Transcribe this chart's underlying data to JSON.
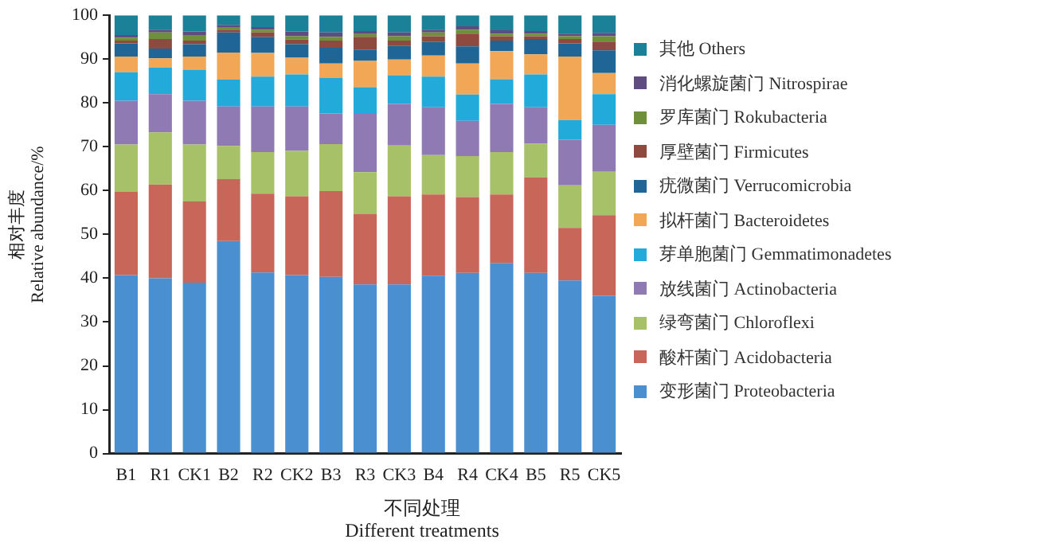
{
  "chart_data": {
    "type": "bar",
    "stacked": true,
    "ylabel": "相对丰度\nRelative abundance/%",
    "xlabel": "不同处理\nDifferent treatments",
    "legend": "right",
    "grid": false,
    "categories": [
      "B1",
      "R1",
      "CK1",
      "B2",
      "R2",
      "CK2",
      "B3",
      "R3",
      "CK3",
      "B4",
      "R4",
      "CK4",
      "B5",
      "R5",
      "CK5"
    ],
    "ylim": [
      0,
      100
    ],
    "yticks": [
      0,
      10,
      20,
      30,
      40,
      50,
      60,
      70,
      80,
      90,
      100
    ],
    "series": [
      {
        "name": "变形菌门 Proteobacteria",
        "color": "#4a8fd0",
        "values": [
          40.7,
          40.0,
          39.0,
          48.5,
          41.3,
          40.7,
          40.3,
          38.6,
          38.6,
          40.6,
          41.2,
          43.5,
          41.2,
          39.5,
          36.0
        ]
      },
      {
        "name": "酸杆菌门 Acidobacteria",
        "color": "#c9665a",
        "values": [
          19.0,
          21.4,
          18.5,
          14.1,
          18.0,
          18.0,
          19.6,
          16.1,
          20.1,
          18.5,
          17.3,
          15.6,
          21.8,
          12.0,
          18.4
        ]
      },
      {
        "name": "绿弯菌门 Chloroflexi",
        "color": "#a6c168",
        "values": [
          10.8,
          11.9,
          13.0,
          7.6,
          9.5,
          10.4,
          10.7,
          9.5,
          11.6,
          9.0,
          9.4,
          9.7,
          7.7,
          9.7,
          9.9
        ]
      },
      {
        "name": "放线菌门 Actinobacteria",
        "color": "#8f7ab3",
        "values": [
          10.0,
          8.7,
          10.0,
          9.0,
          10.4,
          10.1,
          7.0,
          13.3,
          9.5,
          10.9,
          8.0,
          11.0,
          8.3,
          10.4,
          10.7
        ]
      },
      {
        "name": "芽单胞菌门 Gemmatimonadetes",
        "color": "#22aadb",
        "values": [
          6.5,
          6.1,
          7.1,
          6.1,
          6.8,
          7.3,
          8.1,
          6.1,
          6.5,
          7.0,
          6.0,
          5.6,
          7.5,
          4.5,
          7.0
        ]
      },
      {
        "name": "拟杆菌门 Bacteroidetes",
        "color": "#f2a757",
        "values": [
          3.6,
          2.1,
          3.0,
          6.2,
          5.4,
          3.8,
          3.3,
          6.0,
          3.6,
          4.8,
          7.1,
          6.4,
          4.6,
          14.5,
          4.8
        ]
      },
      {
        "name": "疣微菌门 Verrucomicrobia",
        "color": "#1f6595",
        "values": [
          3.0,
          2.2,
          2.8,
          4.6,
          3.7,
          3.1,
          3.6,
          2.6,
          3.1,
          3.1,
          3.9,
          2.4,
          3.5,
          3.0,
          5.2
        ]
      },
      {
        "name": "厚壁菌门 Firmicutes",
        "color": "#8f4a40",
        "values": [
          0.6,
          2.2,
          0.8,
          0.6,
          1.0,
          1.1,
          1.6,
          2.9,
          1.2,
          1.3,
          2.9,
          1.0,
          0.6,
          1.0,
          2.0
        ]
      },
      {
        "name": "罗库菌门 Rokubacteria",
        "color": "#6f8f3a",
        "values": [
          0.7,
          1.5,
          1.3,
          0.6,
          0.6,
          0.7,
          0.9,
          0.6,
          1.0,
          0.9,
          0.9,
          0.6,
          0.6,
          0.6,
          1.2
        ]
      },
      {
        "name": "消化螺旋菌门 Nitrospirae",
        "color": "#5f4d82",
        "values": [
          0.6,
          0.6,
          0.8,
          0.5,
          0.6,
          1.1,
          1.0,
          0.7,
          0.9,
          0.6,
          0.8,
          0.8,
          0.6,
          0.6,
          0.8
        ]
      },
      {
        "name": "其他 Others",
        "color": "#1a8199",
        "values": [
          4.5,
          3.3,
          3.7,
          2.2,
          2.7,
          3.7,
          3.9,
          3.6,
          3.9,
          3.3,
          2.5,
          3.4,
          3.6,
          4.2,
          4.0
        ]
      }
    ]
  }
}
